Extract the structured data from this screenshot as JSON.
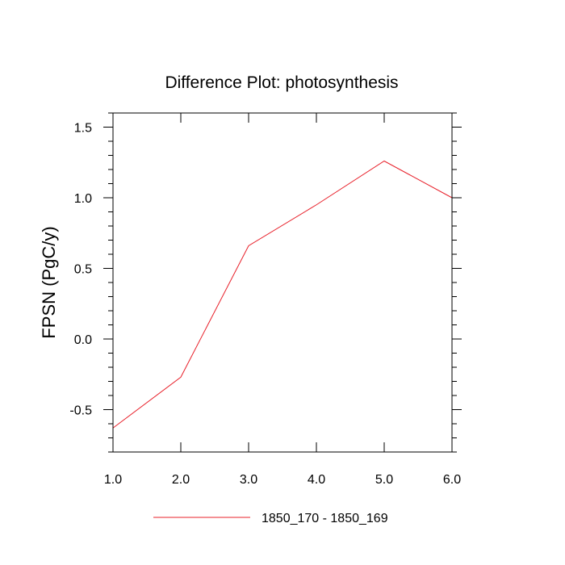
{
  "chart_data": {
    "type": "line",
    "title": "Difference Plot: photosynthesis",
    "xlabel": "",
    "ylabel": "FPSN  (PgC/y)",
    "x": [
      1.0,
      2.0,
      3.0,
      4.0,
      5.0,
      6.0
    ],
    "xlim": [
      1.0,
      6.0
    ],
    "ylim": [
      -0.8,
      1.6
    ],
    "x_ticks": [
      1.0,
      2.0,
      3.0,
      4.0,
      5.0,
      6.0
    ],
    "x_tick_labels": [
      "1.0",
      "2.0",
      "3.0",
      "4.0",
      "5.0",
      "6.0"
    ],
    "y_ticks": [
      -0.5,
      0.0,
      0.5,
      1.0,
      1.5
    ],
    "y_tick_labels": [
      "-0.5",
      "0.0",
      "0.5",
      "1.0",
      "1.5"
    ],
    "grid": false,
    "legend_position": "bottom-center",
    "series": [
      {
        "name": "1850_170 - 1850_169",
        "color": "#e8202a",
        "values": [
          -0.63,
          -0.27,
          0.66,
          0.95,
          1.26,
          1.0
        ]
      }
    ]
  }
}
